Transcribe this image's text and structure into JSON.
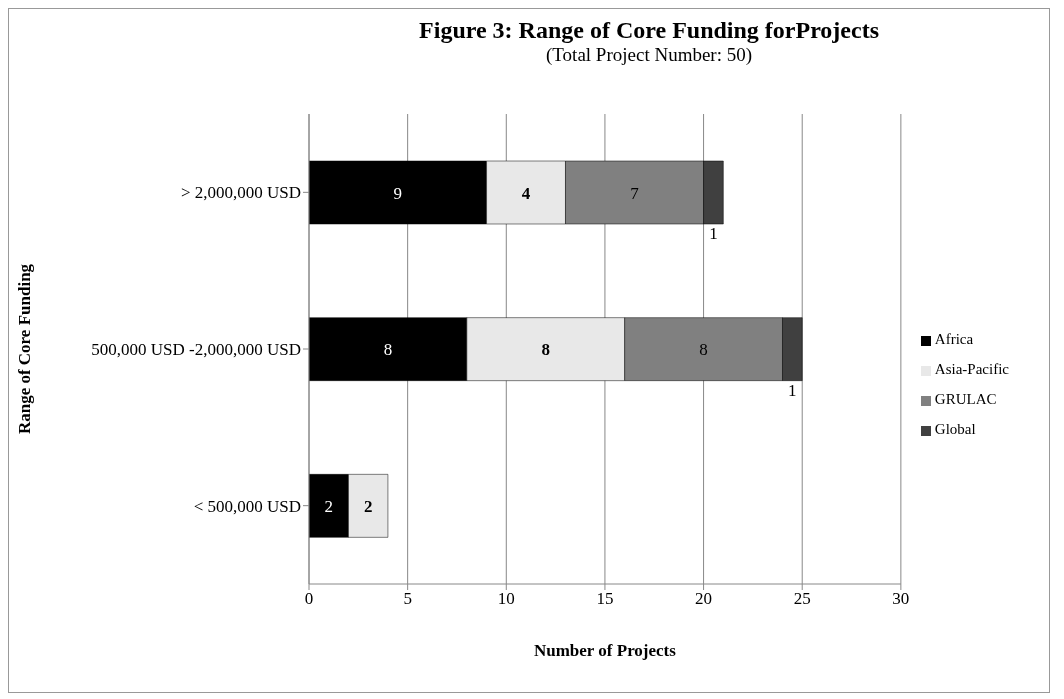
{
  "chart_data": {
    "type": "bar",
    "orientation": "horizontal",
    "stacked": true,
    "title": "Figure 3: Range of Core Funding forProjects",
    "subtitle": "(Total Project Number: 50)",
    "xlabel": "Number of Projects",
    "ylabel": "Range of Core Funding",
    "categories": [
      "> 2,000,000 USD",
      "500,000 USD -2,000,000 USD",
      "< 500,000 USD"
    ],
    "series": [
      {
        "name": "Africa",
        "color": "#000000",
        "values": [
          9,
          8,
          2
        ],
        "value_labels": [
          "9",
          "8",
          "2"
        ]
      },
      {
        "name": "Asia-Pacific",
        "color": "#e8e8e8",
        "values": [
          4,
          8,
          2
        ],
        "value_labels": [
          "4",
          "8",
          "2"
        ]
      },
      {
        "name": "GRULAC",
        "color": "#808080",
        "values": [
          7,
          8,
          null
        ],
        "value_labels": [
          "7",
          "8",
          null
        ]
      },
      {
        "name": "Global",
        "color": "#404040",
        "values": [
          1,
          1,
          null
        ],
        "value_labels": [
          "1",
          "1",
          null
        ]
      }
    ],
    "xlim": [
      0,
      30
    ],
    "xticks": [
      0,
      5,
      10,
      15,
      20,
      25,
      30
    ],
    "grid": "x",
    "legend": "right"
  }
}
